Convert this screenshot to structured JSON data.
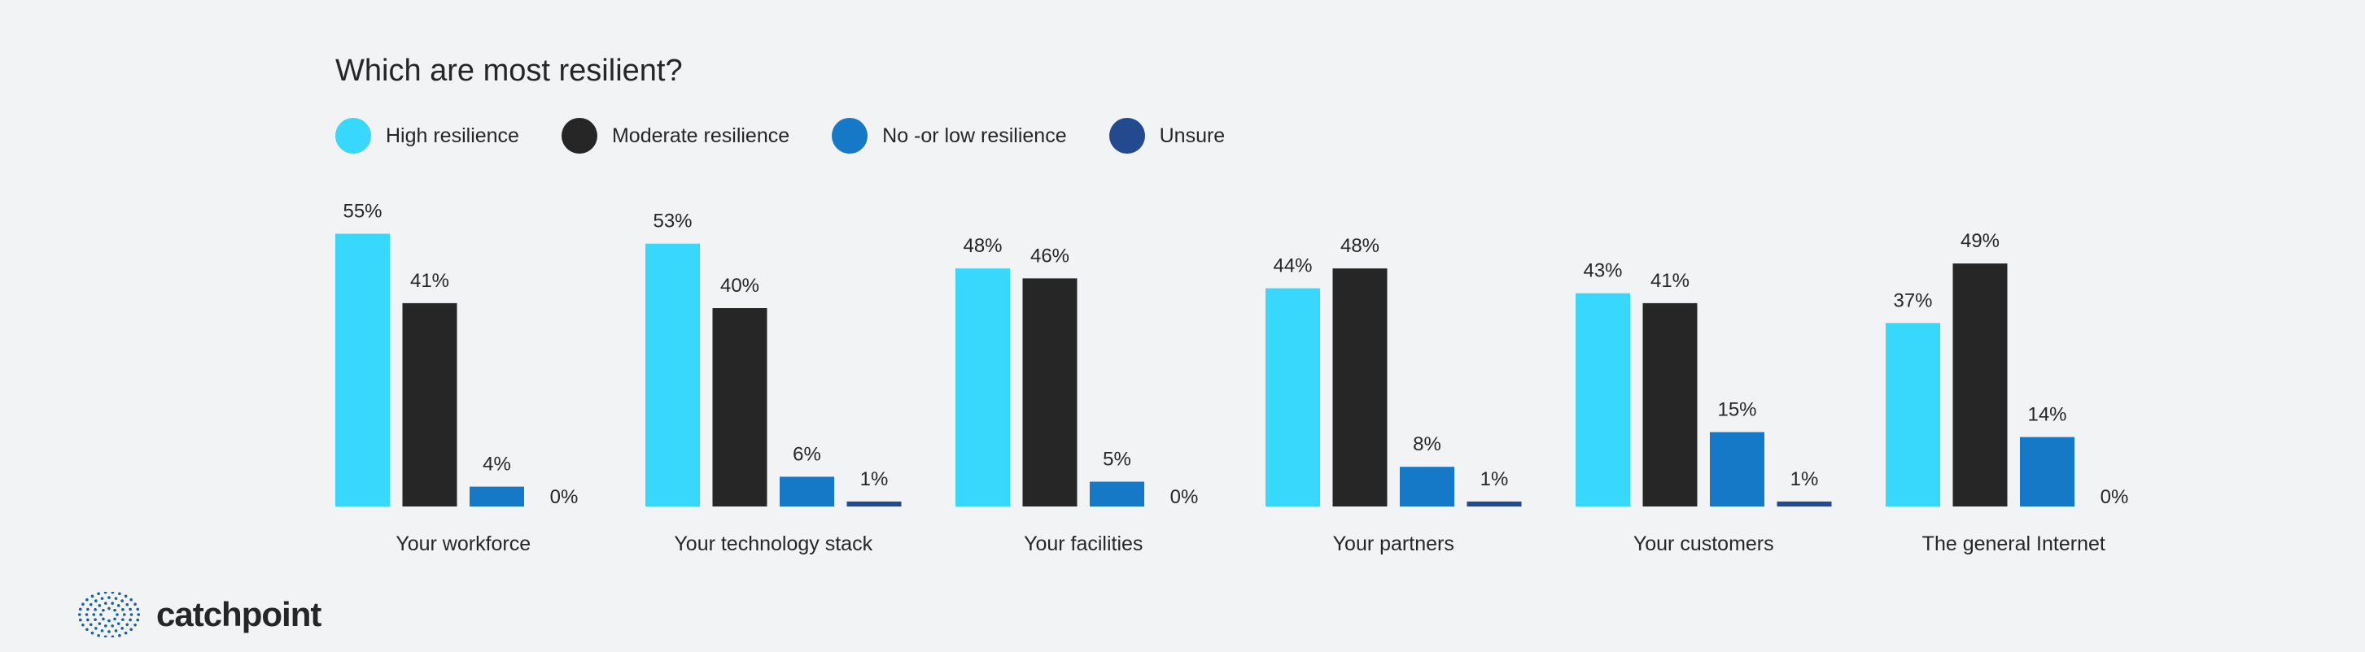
{
  "chart_data": {
    "type": "bar",
    "title": "Which are most resilient?",
    "categories": [
      "Your workforce",
      "Your technology stack",
      "Your facilities",
      "Your partners",
      "Your customers",
      "The general Internet"
    ],
    "series": [
      {
        "name": "High resilience",
        "color": "#38d8fc",
        "values": [
          55,
          53,
          48,
          44,
          43,
          37
        ]
      },
      {
        "name": "Moderate resilience",
        "color": "#262626",
        "values": [
          41,
          40,
          46,
          48,
          41,
          49
        ]
      },
      {
        "name": "No -or low resilience",
        "color": "#1679c8",
        "values": [
          4,
          6,
          5,
          8,
          15,
          14
        ]
      },
      {
        "name": "Unsure",
        "color": "#234a8e",
        "values": [
          0,
          1,
          0,
          1,
          1,
          0
        ]
      }
    ],
    "value_suffix": "%",
    "ylim": [
      0,
      60
    ],
    "legend_position": "top-left",
    "grid": false
  },
  "brand": {
    "name": "catchpoint",
    "logo_icon": "dotted-globe-icon",
    "color": "#1a5fa8"
  }
}
